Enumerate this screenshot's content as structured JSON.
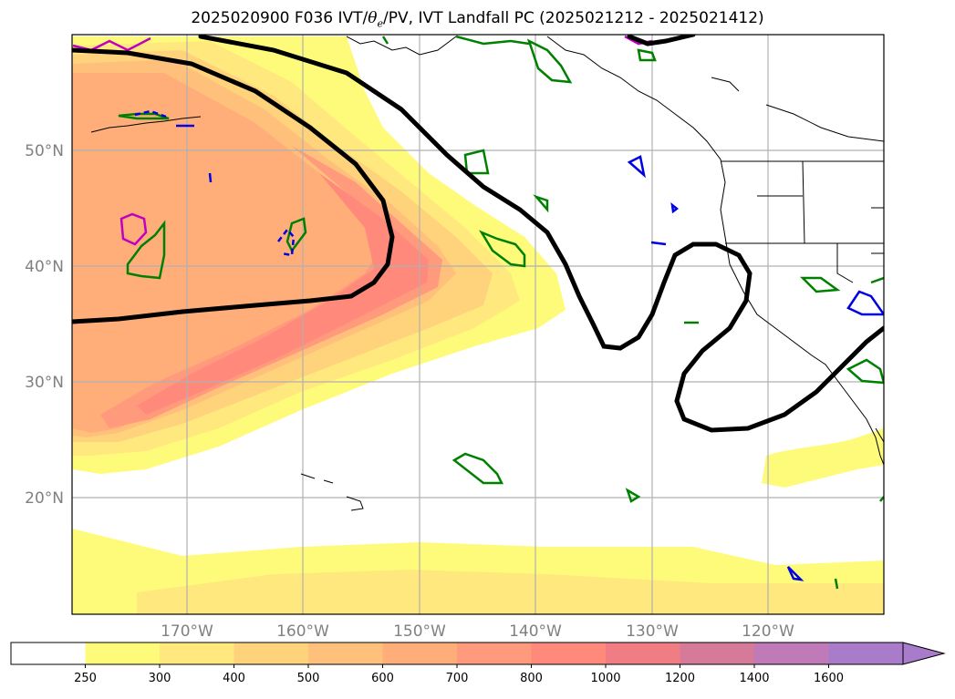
{
  "title": {
    "prefix": "2025020900 F036 IVT/",
    "theta": "θ",
    "theta_sub": "e",
    "suffix": "/PV, IVT Landfall PC (2025021212 - 2025021412)"
  },
  "map": {
    "lon_labels": [
      "170°W",
      "160°W",
      "150°W",
      "140°W",
      "130°W",
      "120°W"
    ],
    "lat_labels": [
      "50°N",
      "40°N",
      "30°N",
      "20°N"
    ]
  },
  "colorbar": {
    "ticks": [
      "250",
      "300",
      "400",
      "500",
      "600",
      "700",
      "800",
      "1000",
      "1200",
      "1400",
      "1600"
    ],
    "colors": [
      "#ffffff",
      "#fffb7a",
      "#ffe97e",
      "#ffd27c",
      "#ffc07b",
      "#ffae7a",
      "#ff9a7c",
      "#ff8a7c",
      "#f07d84",
      "#d67a9a",
      "#c07ab8",
      "#a87cca"
    ]
  }
}
